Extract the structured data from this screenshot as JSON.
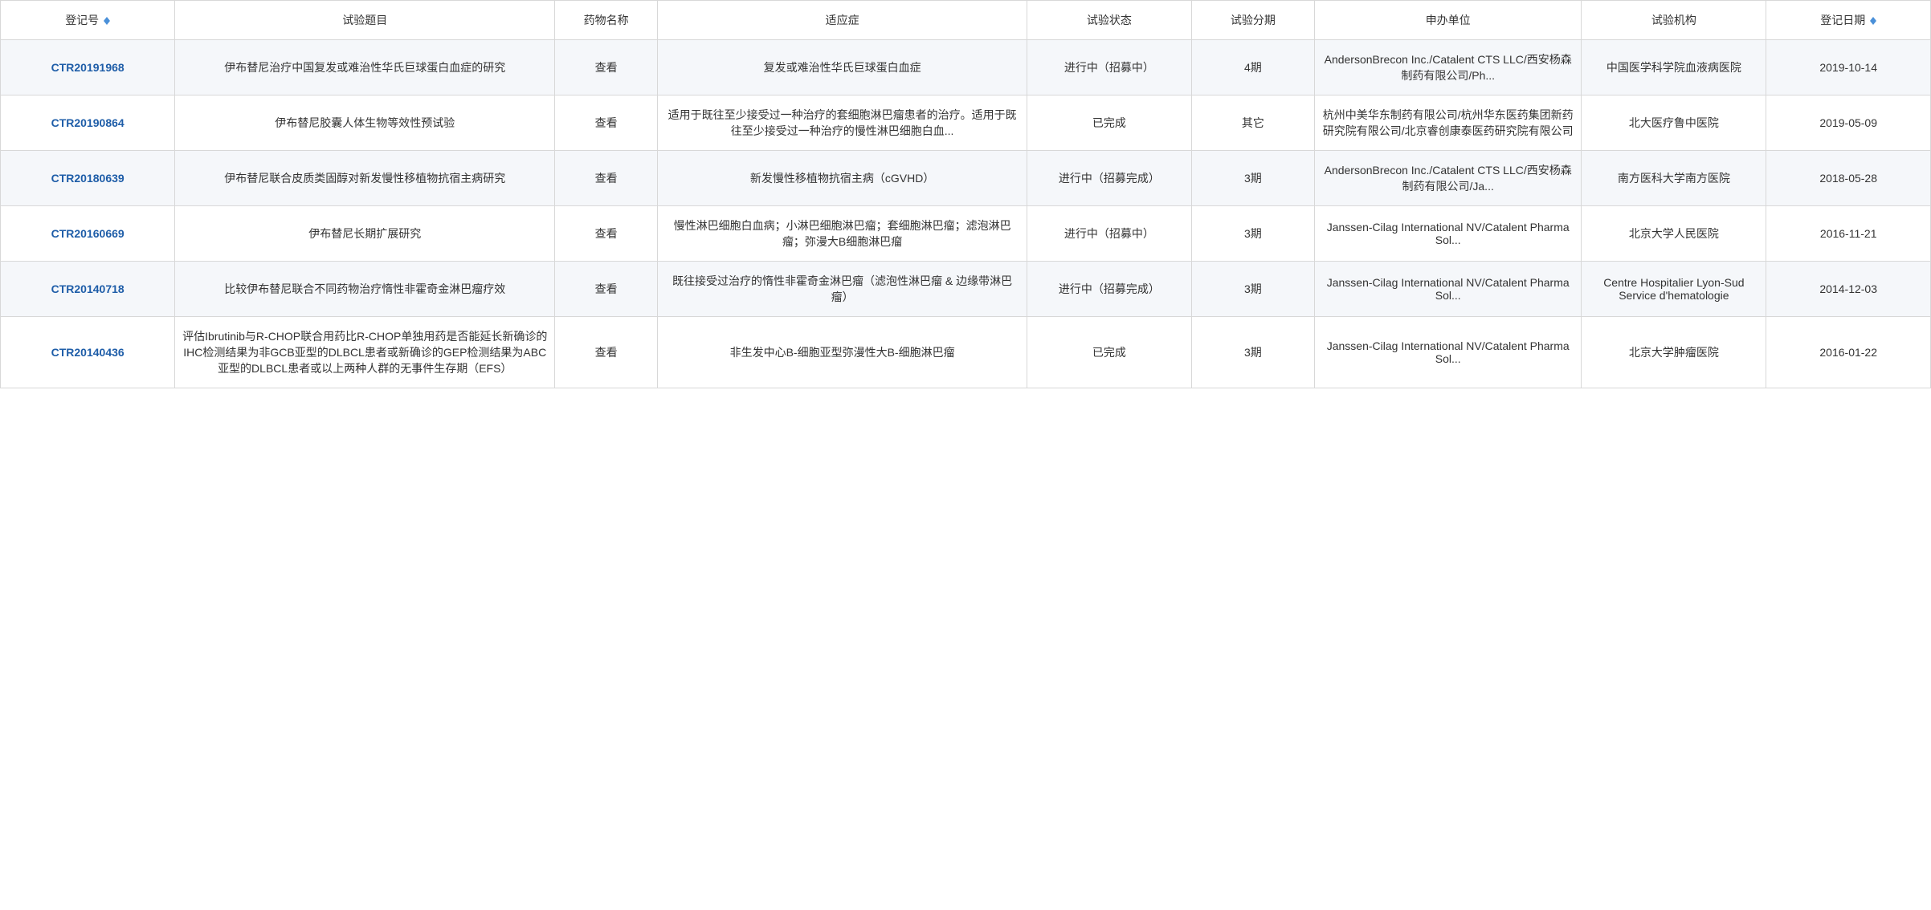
{
  "columns": {
    "id": "登记号",
    "title": "试验题目",
    "drug": "药物名称",
    "indication": "适应症",
    "status": "试验状态",
    "phase": "试验分期",
    "sponsor": "申办单位",
    "org": "试验机构",
    "date": "登记日期"
  },
  "sort_icon_up_color": "#4a90d9",
  "sort_icon_down_color": "#4a90d9",
  "rows": [
    {
      "id": "CTR20191968",
      "title": "伊布替尼治疗中国复发或难治性华氏巨球蛋白血症的研究",
      "drug": "查看",
      "indication": "复发或难治性华氏巨球蛋白血症",
      "status": "进行中（招募中）",
      "phase": "4期",
      "sponsor": "AndersonBrecon Inc./Catalent CTS LLC/西安杨森制药有限公司/Ph...",
      "org": "中国医学科学院血液病医院",
      "date": "2019-10-14"
    },
    {
      "id": "CTR20190864",
      "title": "伊布替尼胶囊人体生物等效性预试验",
      "drug": "查看",
      "indication": "适用于既往至少接受过一种治疗的套细胞淋巴瘤患者的治疗。适用于既往至少接受过一种治疗的慢性淋巴细胞白血...",
      "status": "已完成",
      "phase": "其它",
      "sponsor": "杭州中美华东制药有限公司/杭州华东医药集团新药研究院有限公司/北京睿创康泰医药研究院有限公司",
      "org": "北大医疗鲁中医院",
      "date": "2019-05-09"
    },
    {
      "id": "CTR20180639",
      "title": "伊布替尼联合皮质类固醇对新发慢性移植物抗宿主病研究",
      "drug": "查看",
      "indication": "新发慢性移植物抗宿主病（cGVHD）",
      "status": "进行中（招募完成）",
      "phase": "3期",
      "sponsor": "AndersonBrecon Inc./Catalent CTS LLC/西安杨森制药有限公司/Ja...",
      "org": "南方医科大学南方医院",
      "date": "2018-05-28"
    },
    {
      "id": "CTR20160669",
      "title": "伊布替尼长期扩展研究",
      "drug": "查看",
      "indication": "慢性淋巴细胞白血病；小淋巴细胞淋巴瘤；套细胞淋巴瘤；滤泡淋巴瘤；弥漫大B细胞淋巴瘤",
      "status": "进行中（招募中）",
      "phase": "3期",
      "sponsor": "Janssen-Cilag International NV/Catalent Pharma Sol...",
      "org": "北京大学人民医院",
      "date": "2016-11-21"
    },
    {
      "id": "CTR20140718",
      "title": "比较伊布替尼联合不同药物治疗惰性非霍奇金淋巴瘤疗效",
      "drug": "查看",
      "indication": "既往接受过治疗的惰性非霍奇金淋巴瘤（滤泡性淋巴瘤 & 边缘带淋巴瘤）",
      "status": "进行中（招募完成）",
      "phase": "3期",
      "sponsor": "Janssen-Cilag International NV/Catalent Pharma Sol...",
      "org": "Centre Hospitalier Lyon-Sud Service d'hematologie",
      "date": "2014-12-03"
    },
    {
      "id": "CTR20140436",
      "title": "评估Ibrutinib与R-CHOP联合用药比R-CHOP单独用药是否能延长新确诊的IHC检测结果为非GCB亚型的DLBCL患者或新确诊的GEP检测结果为ABC亚型的DLBCL患者或以上两种人群的无事件生存期（EFS）",
      "drug": "查看",
      "indication": "非生发中心B-细胞亚型弥漫性大B-细胞淋巴瘤",
      "status": "已完成",
      "phase": "3期",
      "sponsor": "Janssen-Cilag International NV/Catalent Pharma Sol...",
      "org": "北京大学肿瘤医院",
      "date": "2016-01-22"
    }
  ]
}
